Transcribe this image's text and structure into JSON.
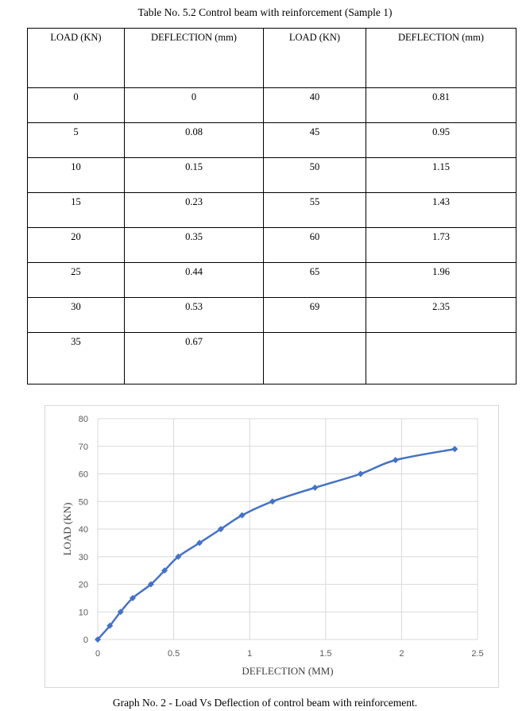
{
  "table_caption": "Table No. 5.2 Control beam with reinforcement (Sample 1)",
  "table": {
    "headers": [
      "LOAD (KN)",
      "DEFLECTION (mm)",
      "LOAD (KN)",
      "DEFLECTION (mm)"
    ],
    "rows": [
      [
        "0",
        "0",
        "40",
        "0.81"
      ],
      [
        "5",
        "0.08",
        "45",
        "0.95"
      ],
      [
        "10",
        "0.15",
        "50",
        "1.15"
      ],
      [
        "15",
        "0.23",
        "55",
        "1.43"
      ],
      [
        "20",
        "0.35",
        "60",
        "1.73"
      ],
      [
        "25",
        "0.44",
        "65",
        "1.96"
      ],
      [
        "30",
        "0.53",
        "69",
        "2.35"
      ],
      [
        "35",
        "0.67",
        "",
        ""
      ]
    ]
  },
  "chart_data": {
    "type": "line",
    "title": "",
    "xlabel": "DEFLECTION (MM)",
    "ylabel": "LOAD (KN)",
    "xlim": [
      0,
      2.5
    ],
    "ylim": [
      0,
      80
    ],
    "x_ticks": [
      "0",
      "0.5",
      "1",
      "1.5",
      "2",
      "2.5"
    ],
    "y_ticks": [
      "0",
      "10",
      "20",
      "30",
      "40",
      "50",
      "60",
      "70",
      "80"
    ],
    "grid": true,
    "legend": "none",
    "series": [
      {
        "color": "#4472c4",
        "marker": "diamond",
        "x": [
          0,
          0.08,
          0.15,
          0.23,
          0.35,
          0.44,
          0.53,
          0.67,
          0.81,
          0.95,
          1.15,
          1.43,
          1.73,
          1.96,
          2.35
        ],
        "y": [
          0,
          5,
          10,
          15,
          20,
          25,
          30,
          35,
          40,
          45,
          50,
          55,
          60,
          65,
          69
        ]
      }
    ]
  },
  "graph_caption": "Graph No. 2 - Load Vs Deflection of control beam with reinforcement."
}
